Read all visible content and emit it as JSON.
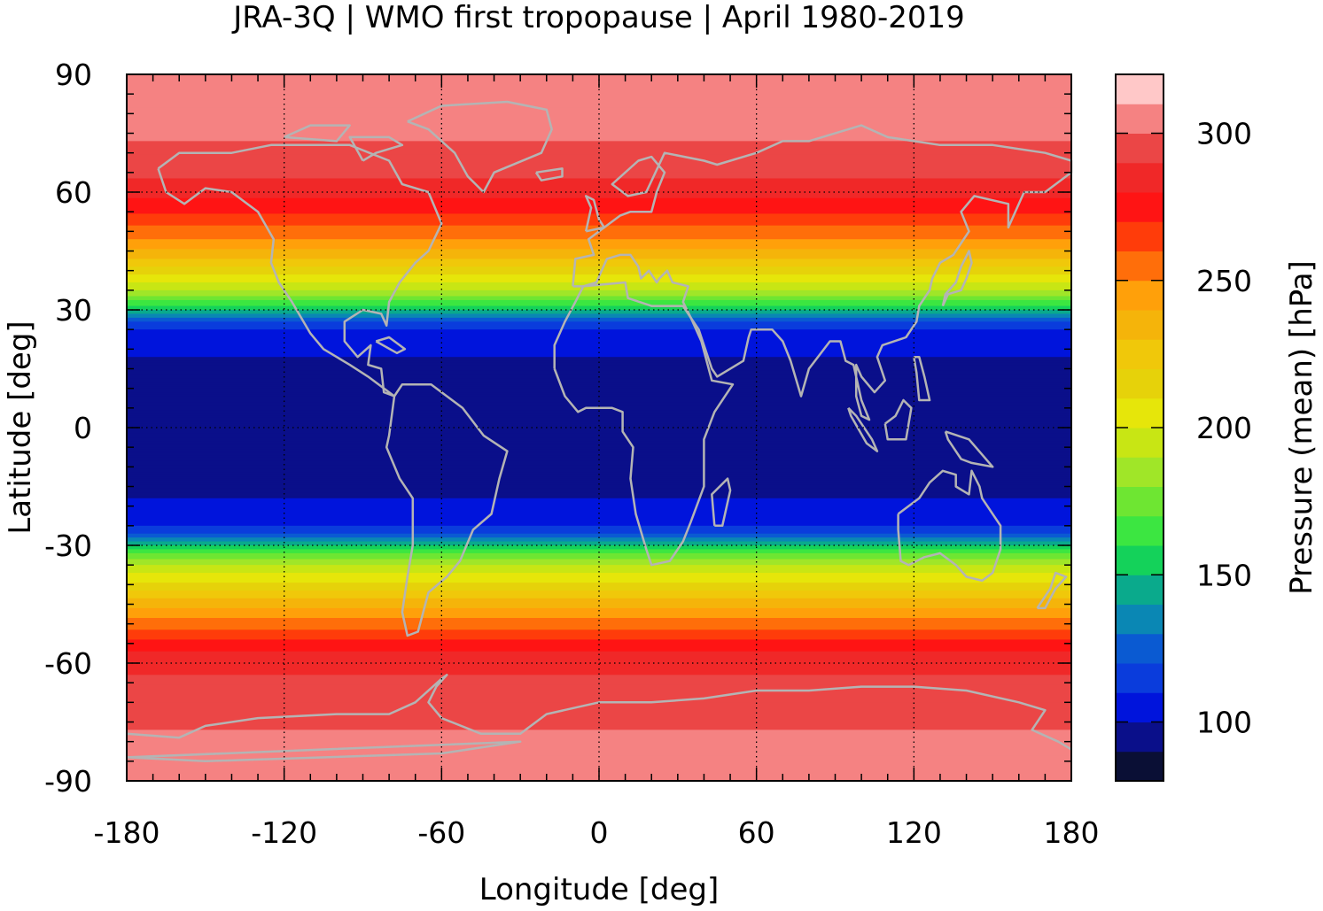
{
  "chart_data": {
    "type": "heatmap",
    "title": "JRA-3Q | WMO first tropopause | April 1980-2019",
    "xlabel": "Longitude [deg]",
    "ylabel": "Latitude [deg]",
    "colorbar_label": "Pressure (mean) [hPa]",
    "xlim": [
      -180,
      180
    ],
    "ylim": [
      -90,
      90
    ],
    "xticks": [
      -180,
      -120,
      -60,
      0,
      60,
      120,
      180
    ],
    "yticks": [
      90,
      60,
      30,
      0,
      -30,
      -60,
      -90
    ],
    "grid": "dotted",
    "colorbar_range": [
      80,
      320
    ],
    "colorbar_ticks": [
      100,
      150,
      200,
      250,
      300
    ],
    "colorbar_levels": [
      {
        "min": 80,
        "max": 90,
        "color": "#0a0f35"
      },
      {
        "min": 90,
        "max": 100,
        "color": "#0a0f8a"
      },
      {
        "min": 100,
        "max": 110,
        "color": "#0014dc"
      },
      {
        "min": 110,
        "max": 120,
        "color": "#0a3cdc"
      },
      {
        "min": 120,
        "max": 130,
        "color": "#0a5ad2"
      },
      {
        "min": 130,
        "max": 140,
        "color": "#0a87b4"
      },
      {
        "min": 140,
        "max": 150,
        "color": "#0aaa8c"
      },
      {
        "min": 150,
        "max": 160,
        "color": "#14d25a"
      },
      {
        "min": 160,
        "max": 170,
        "color": "#3ce641"
      },
      {
        "min": 170,
        "max": 180,
        "color": "#6ee632"
      },
      {
        "min": 180,
        "max": 190,
        "color": "#a0e628"
      },
      {
        "min": 190,
        "max": 200,
        "color": "#c8e614"
      },
      {
        "min": 200,
        "max": 210,
        "color": "#e6e60a"
      },
      {
        "min": 210,
        "max": 220,
        "color": "#e6d20a"
      },
      {
        "min": 220,
        "max": 230,
        "color": "#f0c80a"
      },
      {
        "min": 230,
        "max": 240,
        "color": "#f5b40a"
      },
      {
        "min": 240,
        "max": 250,
        "color": "#ffa00a"
      },
      {
        "min": 250,
        "max": 260,
        "color": "#ff6e0a"
      },
      {
        "min": 260,
        "max": 270,
        "color": "#ff3c0a"
      },
      {
        "min": 270,
        "max": 280,
        "color": "#ff1414"
      },
      {
        "min": 280,
        "max": 290,
        "color": "#f02828"
      },
      {
        "min": 290,
        "max": 300,
        "color": "#eb4646"
      },
      {
        "min": 300,
        "max": 310,
        "color": "#f58282"
      },
      {
        "min": 310,
        "max": 320,
        "color": "#ffc8c8"
      }
    ],
    "zonal_profile": [
      {
        "lat": 90,
        "value": 310
      },
      {
        "lat": 80,
        "value": 305
      },
      {
        "lat": 70,
        "value": 298
      },
      {
        "lat": 62,
        "value": 288
      },
      {
        "lat": 56,
        "value": 275
      },
      {
        "lat": 52,
        "value": 262
      },
      {
        "lat": 48,
        "value": 250
      },
      {
        "lat": 44,
        "value": 235
      },
      {
        "lat": 40,
        "value": 215
      },
      {
        "lat": 36,
        "value": 195
      },
      {
        "lat": 33,
        "value": 175
      },
      {
        "lat": 30,
        "value": 150
      },
      {
        "lat": 27,
        "value": 120
      },
      {
        "lat": 24,
        "value": 105
      },
      {
        "lat": 18,
        "value": 100
      },
      {
        "lat": 10,
        "value": 94
      },
      {
        "lat": 0,
        "value": 92
      },
      {
        "lat": -10,
        "value": 95
      },
      {
        "lat": -18,
        "value": 100
      },
      {
        "lat": -24,
        "value": 105
      },
      {
        "lat": -27,
        "value": 120
      },
      {
        "lat": -30,
        "value": 150
      },
      {
        "lat": -33,
        "value": 178
      },
      {
        "lat": -37,
        "value": 200
      },
      {
        "lat": -42,
        "value": 222
      },
      {
        "lat": -47,
        "value": 245
      },
      {
        "lat": -52,
        "value": 262
      },
      {
        "lat": -56,
        "value": 278
      },
      {
        "lat": -60,
        "value": 288
      },
      {
        "lat": -70,
        "value": 295
      },
      {
        "lat": -80,
        "value": 302
      },
      {
        "lat": -90,
        "value": 300
      }
    ]
  },
  "colors": {
    "coastline": "#b4b4b4",
    "axis": "#000000",
    "grid": "#000000"
  }
}
